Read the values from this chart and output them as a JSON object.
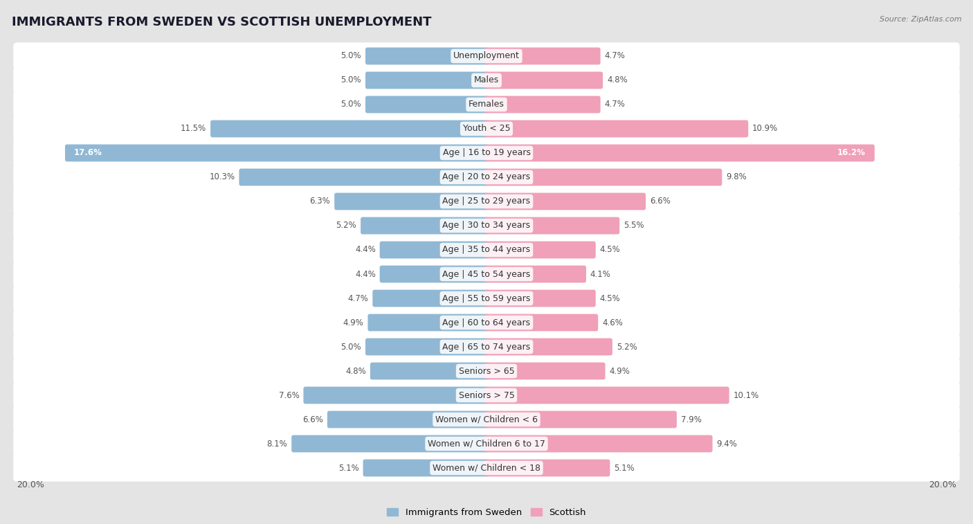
{
  "title": "IMMIGRANTS FROM SWEDEN VS SCOTTISH UNEMPLOYMENT",
  "source": "Source: ZipAtlas.com",
  "categories": [
    "Unemployment",
    "Males",
    "Females",
    "Youth < 25",
    "Age | 16 to 19 years",
    "Age | 20 to 24 years",
    "Age | 25 to 29 years",
    "Age | 30 to 34 years",
    "Age | 35 to 44 years",
    "Age | 45 to 54 years",
    "Age | 55 to 59 years",
    "Age | 60 to 64 years",
    "Age | 65 to 74 years",
    "Seniors > 65",
    "Seniors > 75",
    "Women w/ Children < 6",
    "Women w/ Children 6 to 17",
    "Women w/ Children < 18"
  ],
  "left_values": [
    5.0,
    5.0,
    5.0,
    11.5,
    17.6,
    10.3,
    6.3,
    5.2,
    4.4,
    4.4,
    4.7,
    4.9,
    5.0,
    4.8,
    7.6,
    6.6,
    8.1,
    5.1
  ],
  "right_values": [
    4.7,
    4.8,
    4.7,
    10.9,
    16.2,
    9.8,
    6.6,
    5.5,
    4.5,
    4.1,
    4.5,
    4.6,
    5.2,
    4.9,
    10.1,
    7.9,
    9.4,
    5.1
  ],
  "left_color": "#90b8d4",
  "right_color": "#f0a0b8",
  "left_label": "Immigrants from Sweden",
  "right_label": "Scottish",
  "xlim": 20.0,
  "background_color": "#e4e4e4",
  "bar_row_color": "#ffffff",
  "title_fontsize": 13,
  "cat_fontsize": 9,
  "value_fontsize": 8.5,
  "axis_label_fontsize": 9
}
